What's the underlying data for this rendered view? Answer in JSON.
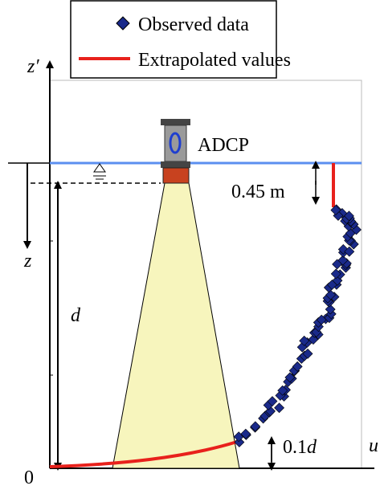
{
  "legend": {
    "items": [
      "Observed data",
      "Extrapolated values"
    ]
  },
  "labels": {
    "z_prime": "z′",
    "z": "z",
    "d": "d",
    "origin": "0",
    "u": "u",
    "device": "ADCP",
    "top_gap": "0.45 m",
    "bottom_gap": {
      "number": "0.1",
      "symbol": "d"
    }
  }
}
